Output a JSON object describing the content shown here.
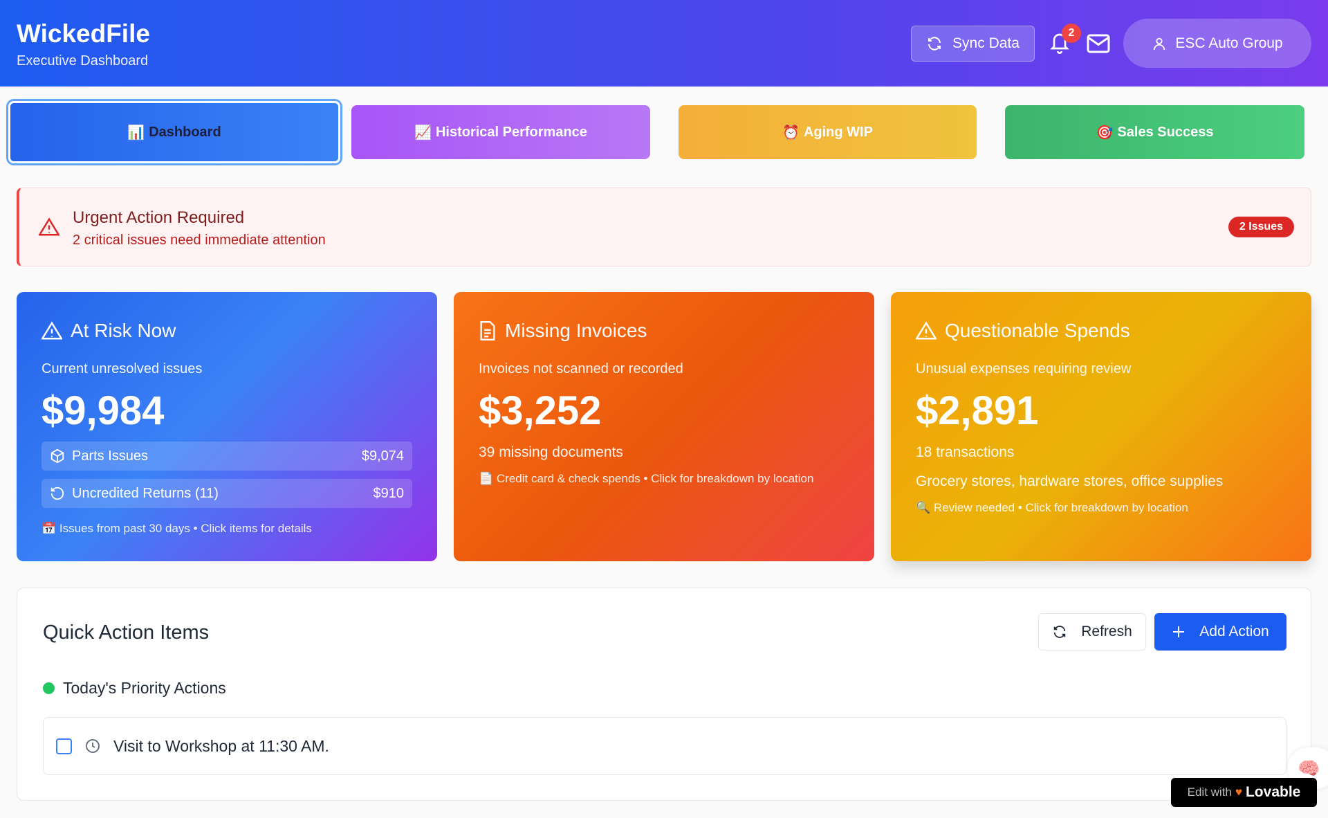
{
  "header": {
    "brand": "WickedFile",
    "subtitle": "Executive Dashboard",
    "sync_label": "Sync Data",
    "notification_count": "2",
    "user_label": "ESC Auto Group"
  },
  "tabs": [
    {
      "icon": "📊",
      "label": "Dashboard",
      "color": "#2563eb"
    },
    {
      "icon": "📈",
      "label": "Historical Performance",
      "color": "#a855f7"
    },
    {
      "icon": "⏰",
      "label": "Aging WIP",
      "color": "#f0b63a"
    },
    {
      "icon": "🎯",
      "label": "Sales Success",
      "color": "#3fbf72"
    }
  ],
  "alert": {
    "title": "Urgent Action Required",
    "description": "2 critical issues need immediate attention",
    "badge": "2 Issues"
  },
  "cards": [
    {
      "title": "At Risk Now",
      "subtitle": "Current unresolved issues",
      "value": "$9,984",
      "rows": [
        {
          "label": "Parts Issues",
          "value": "$9,074"
        },
        {
          "label": "Uncredited Returns (11)",
          "value": "$910"
        }
      ],
      "note_icon": "📅",
      "note": "Issues from past 30 days • Click items for details"
    },
    {
      "title": "Missing Invoices",
      "subtitle": "Invoices not scanned or recorded",
      "value": "$3,252",
      "detail": "39 missing documents",
      "note_icon": "📄",
      "note": "Credit card & check spends • Click for breakdown by location"
    },
    {
      "title": "Questionable Spends",
      "subtitle": "Unusual expenses requiring review",
      "value": "$2,891",
      "detail": "18 transactions",
      "detail2": "Grocery stores, hardware stores, office supplies",
      "note_icon": "🔍",
      "note": "Review needed • Click for breakdown by location"
    }
  ],
  "quick_actions": {
    "title": "Quick Action Items",
    "refresh_label": "Refresh",
    "add_label": "Add Action",
    "section": "Today's Priority Actions",
    "items": [
      {
        "text": "Visit to Workshop at 11:30 AM.",
        "done": false
      }
    ]
  },
  "lovable": {
    "prefix": "Edit with",
    "brand": "Lovable"
  }
}
